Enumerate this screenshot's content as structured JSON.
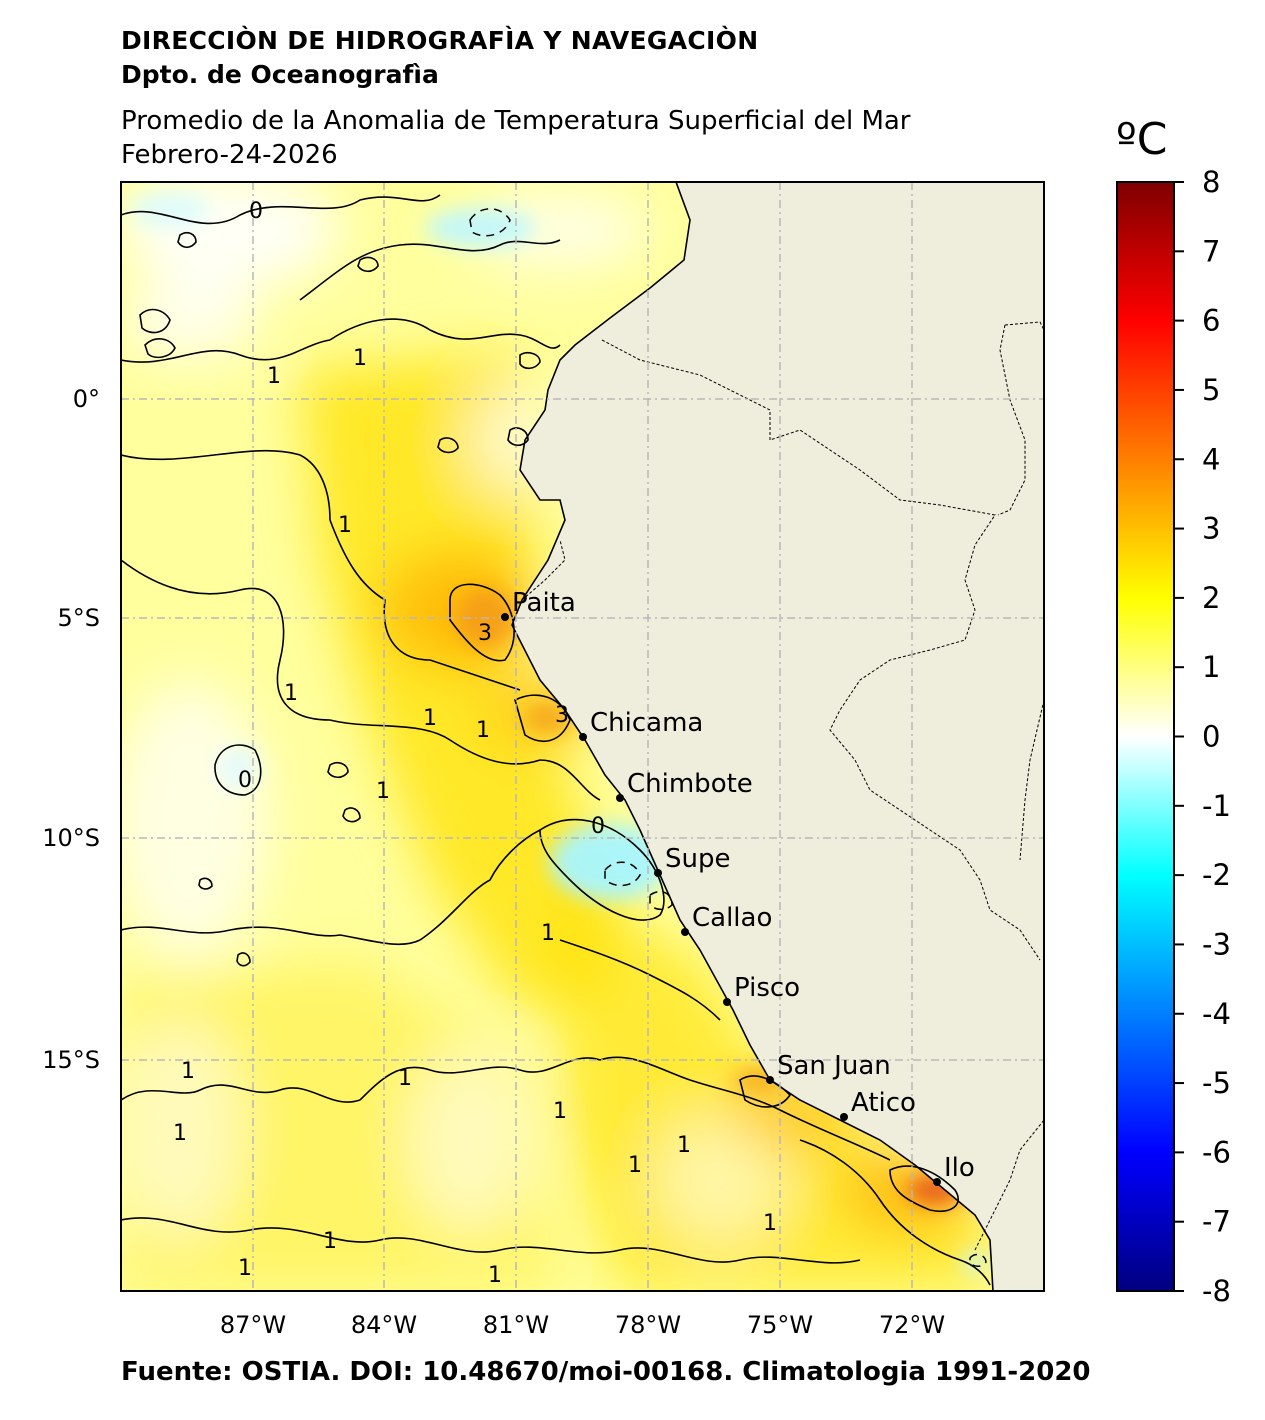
{
  "header": {
    "institution": "DIRECCIÒN DE HIDROGRAFÌA Y NAVEGACIÒN",
    "department": "Dpto. de Oceanografìa",
    "product": "Promedio de la Anomalia de Temperatura Superficial del Mar",
    "date": "Febrero-24-2026"
  },
  "colorbar": {
    "unit": "ºC",
    "min": -8,
    "max": 8,
    "ticks": [
      "8",
      "7",
      "6",
      "5",
      "4",
      "3",
      "2",
      "1",
      "0",
      "-1",
      "-2",
      "-3",
      "-4",
      "-5",
      "-6",
      "-7",
      "-8"
    ],
    "colors": [
      "#00007f",
      "#0000ff",
      "#007fff",
      "#00ffff",
      "#ffffff",
      "#ffff00",
      "#ff7f00",
      "#ff0000",
      "#7f0000"
    ]
  },
  "map": {
    "lon_labels": [
      "87°W",
      "84°W",
      "81°W",
      "78°W",
      "75°W",
      "72°W"
    ],
    "lat_labels": [
      "0°",
      "5°S",
      "10°S",
      "15°S"
    ],
    "land_color": "#efeddb",
    "cities": [
      {
        "name": "Paita"
      },
      {
        "name": "Chicama"
      },
      {
        "name": "Chimbote"
      },
      {
        "name": "Supe"
      },
      {
        "name": "Callao"
      },
      {
        "name": "Pisco"
      },
      {
        "name": "San Juan"
      },
      {
        "name": "Atico"
      },
      {
        "name": "Ilo"
      }
    ],
    "contour_labels": [
      "0",
      "1",
      "1",
      "1",
      "1",
      "1",
      "1",
      "1",
      "1",
      "1",
      "1",
      "1",
      "1",
      "1",
      "1",
      "1",
      "1",
      "1",
      "1",
      "0",
      "0",
      "3",
      "3"
    ]
  },
  "footer": {
    "source": "Fuente: OSTIA. DOI: 10.48670/moi-00168. Climatologia 1991-2020"
  }
}
